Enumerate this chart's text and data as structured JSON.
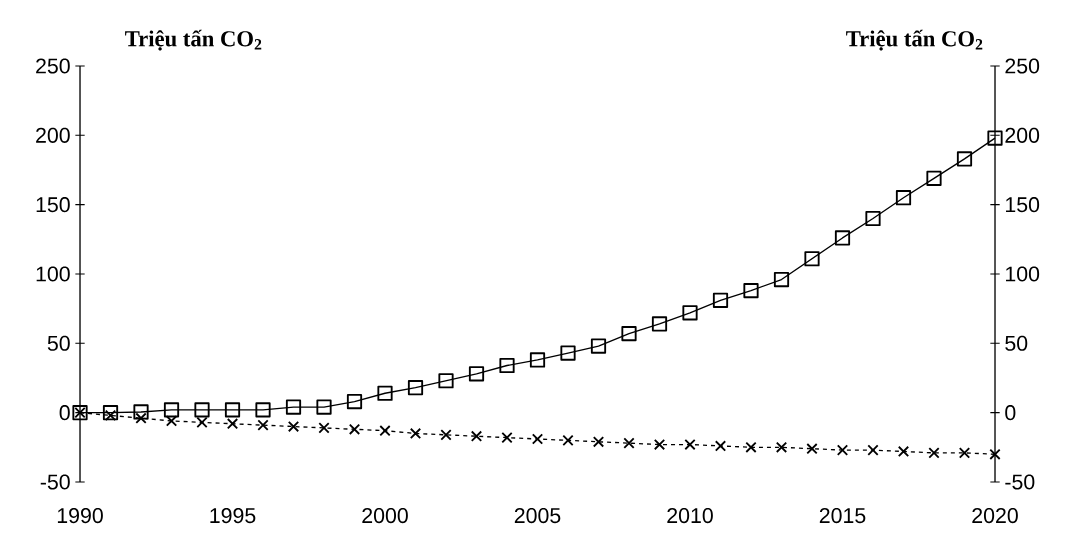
{
  "chart_data": {
    "type": "line",
    "ylabel": "Triệu tấn CO$_{2}$",
    "y2label": "Triệu tấn CO$_{2}$",
    "x": [
      1990,
      1991,
      1992,
      1993,
      1994,
      1995,
      1996,
      1997,
      1998,
      1999,
      2000,
      2001,
      2002,
      2003,
      2004,
      2005,
      2006,
      2007,
      2008,
      2009,
      2010,
      2011,
      2012,
      2013,
      2014,
      2015,
      2016,
      2017,
      2018,
      2019,
      2020
    ],
    "series": [
      {
        "color": "#000000",
        "marker": "square",
        "line_style": "solid",
        "values": [
          0,
          0,
          0.5,
          2,
          2,
          2,
          2,
          4,
          4,
          8,
          14,
          18,
          23,
          28,
          34,
          38,
          43,
          48,
          57,
          64,
          72,
          81,
          88,
          96,
          111,
          126,
          140,
          155,
          169,
          183,
          198
        ]
      },
      {
        "color": "#000000",
        "marker": "cross",
        "line_style": "dashed",
        "values": [
          0,
          -2,
          -4,
          -6,
          -7,
          -8,
          -9,
          -10,
          -11,
          -12,
          -13,
          -15,
          -16,
          -17,
          -18,
          -19,
          -20,
          -21,
          -22,
          -23,
          -23,
          -24,
          -25,
          -25,
          -26,
          -27,
          -27,
          -28,
          -29,
          -29,
          -30
        ]
      }
    ],
    "xlim": [
      1990,
      2020
    ],
    "xticks": [
      1990,
      1995,
      2000,
      2005,
      2010,
      2015,
      2020
    ],
    "ylim": [
      -50,
      250
    ],
    "yticks": [
      -50,
      0,
      50,
      100,
      150,
      200,
      250
    ],
    "y2lim": [
      -50,
      250
    ],
    "y2ticks": [
      -50,
      0,
      50,
      100,
      150,
      200,
      250
    ]
  }
}
